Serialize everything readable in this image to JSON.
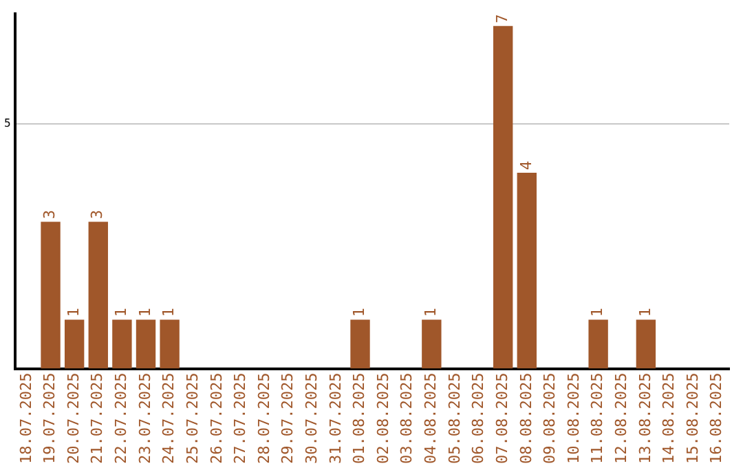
{
  "chart_data": {
    "type": "bar",
    "categories": [
      "18.07.2025",
      "19.07.2025",
      "20.07.2025",
      "21.07.2025",
      "22.07.2025",
      "23.07.2025",
      "24.07.2025",
      "25.07.2025",
      "26.07.2025",
      "27.07.2025",
      "28.07.2025",
      "29.07.2025",
      "30.07.2025",
      "31.07.2025",
      "01.08.2025",
      "02.08.2025",
      "03.08.2025",
      "04.08.2025",
      "05.08.2025",
      "06.08.2025",
      "07.08.2025",
      "08.08.2025",
      "09.08.2025",
      "10.08.2025",
      "11.08.2025",
      "12.08.2025",
      "13.08.2025",
      "14.08.2025",
      "15.08.2025",
      "16.08.2025"
    ],
    "values": [
      0,
      3,
      1,
      3,
      1,
      1,
      1,
      0,
      0,
      0,
      0,
      0,
      0,
      0,
      1,
      0,
      0,
      1,
      0,
      0,
      7,
      4,
      0,
      0,
      1,
      0,
      1,
      0,
      0,
      0
    ],
    "value_labels": [
      null,
      "3",
      "1",
      "3",
      "1",
      "1",
      "1",
      null,
      null,
      null,
      null,
      null,
      null,
      null,
      "1",
      null,
      null,
      "1",
      null,
      null,
      "7",
      "4",
      null,
      null,
      "1",
      null,
      "1",
      null,
      null,
      null
    ],
    "color": "#a0572a",
    "ylim": [
      0,
      7.25
    ],
    "yticks": [
      5
    ],
    "grid": "y",
    "legend": false
  }
}
